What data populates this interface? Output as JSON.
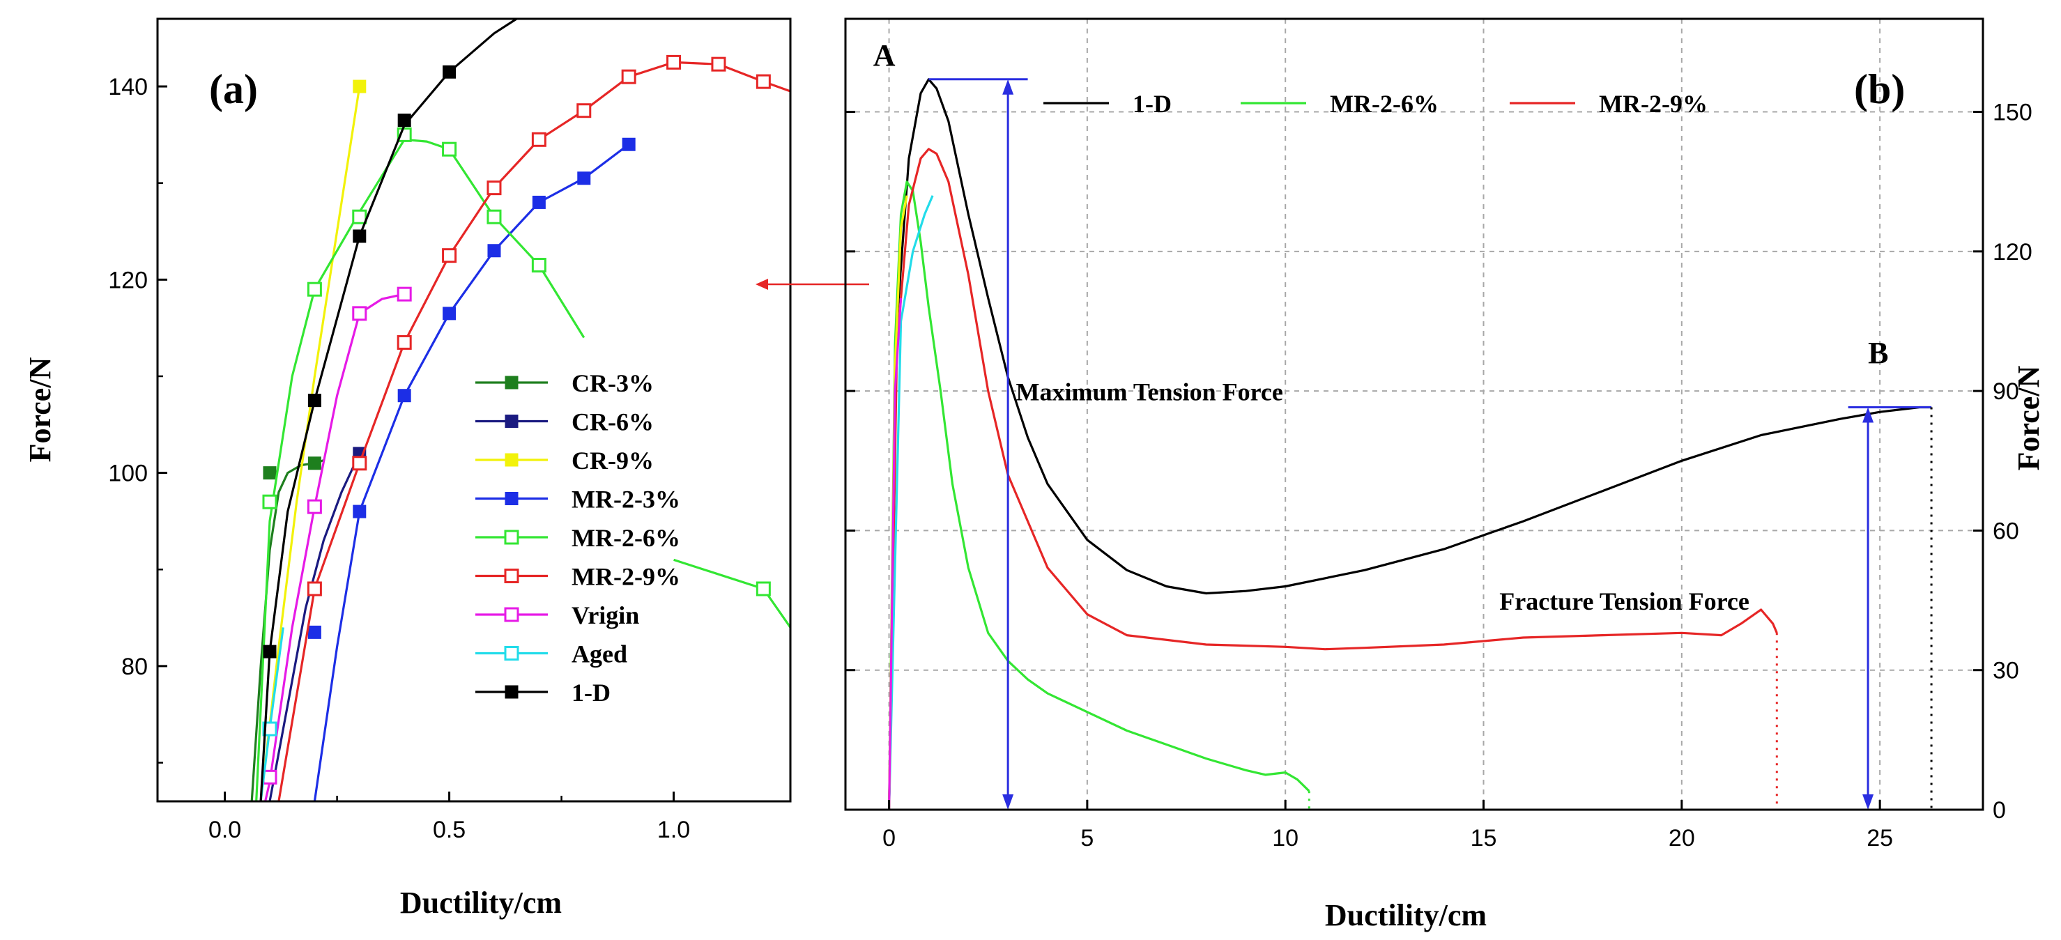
{
  "colors": {
    "cr3": "#1e7f1e",
    "cr6": "#1a1a80",
    "cr9": "#f2f20a",
    "mr3": "#1c2ee6",
    "mr6": "#33e633",
    "mr9": "#e62626",
    "vrigin": "#e61ae6",
    "aged": "#22dcea",
    "oned": "#000000",
    "arrow_blue": "#2a2ee0",
    "grid": "#a8a8a8"
  },
  "chart_data": [
    {
      "panel": "(a)",
      "type": "line",
      "xlabel": "Ductility/cm",
      "ylabel": "Force/N",
      "xlim": [
        -0.15,
        1.26
      ],
      "ylim": [
        66,
        147
      ],
      "xticks": [
        0.0,
        0.5,
        1.0
      ],
      "xtick_labels": [
        "0.0",
        "0.5",
        "1.0"
      ],
      "yticks": [
        80,
        100,
        120,
        140
      ],
      "ytick_labels": [
        "80",
        "100",
        "120",
        "140"
      ],
      "series": [
        {
          "name": "CR-3%",
          "key": "cr3",
          "marker": "filled",
          "x": [
            0.06,
            0.08,
            0.1,
            0.12,
            0.14,
            0.17,
            0.2,
            0.22
          ],
          "y": [
            66,
            80,
            92,
            98,
            100,
            100.8,
            101,
            101.3
          ],
          "mx": [
            0.1,
            0.2
          ],
          "my": [
            100,
            101
          ]
        },
        {
          "name": "CR-6%",
          "key": "cr6",
          "marker": "filled",
          "x": [
            0.1,
            0.14,
            0.18,
            0.22,
            0.26,
            0.3
          ],
          "y": [
            66,
            76,
            86,
            93,
            98,
            102
          ],
          "mx": [
            0.3
          ],
          "my": [
            102
          ]
        },
        {
          "name": "CR-9%",
          "key": "cr9",
          "marker": "filled",
          "x": [
            0.08,
            0.12,
            0.16,
            0.2,
            0.24,
            0.27,
            0.3
          ],
          "y": [
            66,
            82,
            97,
            110,
            122,
            131,
            140
          ],
          "mx": [
            0.3
          ],
          "my": [
            140
          ]
        },
        {
          "name": "MR-2-3%",
          "key": "mr3",
          "marker": "filled",
          "x": [
            0.2,
            0.25,
            0.3,
            0.4,
            0.5,
            0.6,
            0.7,
            0.8,
            0.9
          ],
          "y": [
            66,
            82,
            96,
            108,
            116.5,
            123,
            128,
            130.5,
            134
          ],
          "mx": [
            0.2,
            0.3,
            0.4,
            0.5,
            0.6,
            0.7,
            0.8,
            0.9
          ],
          "my": [
            83.5,
            96,
            108,
            116.5,
            123,
            128,
            130.5,
            134
          ]
        },
        {
          "name": "MR-2-6%",
          "key": "mr6",
          "marker": "open",
          "x": [
            0.07,
            0.1,
            0.15,
            0.2,
            0.3,
            0.4,
            0.45,
            0.5,
            0.6,
            0.7,
            0.8
          ],
          "y": [
            66,
            95,
            110,
            119,
            127,
            134.5,
            134.3,
            133.5,
            126.5,
            121.5,
            114
          ],
          "mx": [
            0.1,
            0.2,
            0.3,
            0.4,
            0.5,
            0.6,
            0.7
          ],
          "my": [
            97,
            119,
            126.5,
            135,
            133.5,
            126.5,
            121.5
          ]
        },
        {
          "name": "MR-2-9%",
          "key": "mr9",
          "marker": "open",
          "x": [
            0.12,
            0.2,
            0.3,
            0.4,
            0.5,
            0.6,
            0.7,
            0.8,
            0.9,
            1.0,
            1.1,
            1.2,
            1.26
          ],
          "y": [
            66,
            88,
            101,
            113.5,
            122.5,
            129.5,
            134.5,
            137.5,
            141,
            142.5,
            142.3,
            140.5,
            139.5
          ],
          "mx": [
            0.2,
            0.3,
            0.4,
            0.5,
            0.6,
            0.7,
            0.8,
            0.9,
            1.0,
            1.1,
            1.2
          ],
          "my": [
            88,
            101,
            113.5,
            122.5,
            129.5,
            134.5,
            137.5,
            141,
            142.5,
            142.3,
            140.5
          ]
        },
        {
          "name": "Vrigin",
          "key": "vrigin",
          "marker": "open",
          "x": [
            0.09,
            0.1,
            0.15,
            0.2,
            0.25,
            0.3,
            0.35,
            0.4
          ],
          "y": [
            66,
            68,
            84,
            96.5,
            108,
            116.5,
            118,
            118.5
          ],
          "mx": [
            0.1,
            0.2,
            0.3,
            0.4
          ],
          "my": [
            68.5,
            96.5,
            116.5,
            118.5
          ]
        },
        {
          "name": "Aged",
          "key": "aged",
          "marker": "open",
          "x": [
            0.08,
            0.1,
            0.13
          ],
          "y": [
            66,
            73.5,
            84
          ],
          "mx": [
            0.1
          ],
          "my": [
            73.5
          ]
        },
        {
          "name": "1-D",
          "key": "oned",
          "marker": "filled",
          "x": [
            0.08,
            0.1,
            0.14,
            0.2,
            0.3,
            0.4,
            0.5,
            0.6,
            0.65
          ],
          "y": [
            66,
            81.5,
            96,
            107.5,
            124.5,
            136,
            141.5,
            145.5,
            147
          ],
          "mx": [
            0.1,
            0.2,
            0.3,
            0.4,
            0.5
          ],
          "my": [
            81.5,
            107.5,
            124.5,
            136.5,
            141.5
          ]
        },
        {
          "name": "MR-2-6% tail",
          "key": "mr6",
          "marker": "open",
          "legend": false,
          "x": [
            1.0,
            1.1,
            1.2,
            1.26
          ],
          "y": [
            91,
            89.5,
            88,
            84
          ],
          "mx": [
            1.2
          ],
          "my": [
            88
          ]
        }
      ],
      "legend_location": "lower-right"
    },
    {
      "panel": "(b)",
      "type": "line",
      "xlabel": "Ductility/cm",
      "ylabel": "Force/N",
      "xlim": [
        -1.1,
        27.6
      ],
      "ylim": [
        0,
        170
      ],
      "xticks": [
        0,
        5,
        10,
        15,
        20,
        25
      ],
      "xtick_labels": [
        "0",
        "5",
        "10",
        "15",
        "20",
        "25"
      ],
      "yticks": [
        0,
        30,
        60,
        90,
        120,
        150
      ],
      "ytick_labels": [
        "0",
        "30",
        "60",
        "90",
        "120",
        "150"
      ],
      "grid": true,
      "series": [
        {
          "name": "1-D",
          "key": "oned",
          "x": [
            0,
            0.2,
            0.5,
            0.8,
            1.0,
            1.2,
            1.5,
            2.0,
            2.5,
            3.0,
            3.5,
            4.0,
            5.0,
            6.0,
            7.0,
            8.0,
            9.0,
            10.0,
            12.0,
            14.0,
            16.0,
            18.0,
            20.0,
            22.0,
            24.0,
            25.0,
            26.0,
            26.3
          ],
          "y": [
            0,
            105,
            140,
            154,
            157,
            155,
            148,
            128,
            110,
            93,
            80,
            70,
            58,
            51.5,
            48,
            46.5,
            47,
            48,
            51.5,
            56,
            62,
            68.5,
            75,
            80.5,
            84,
            85.5,
            86.5,
            86.5
          ]
        },
        {
          "name": "MR-2-6%",
          "key": "mr6",
          "x": [
            0,
            0.15,
            0.3,
            0.45,
            0.6,
            0.8,
            1.0,
            1.3,
            1.6,
            2.0,
            2.5,
            3.0,
            3.5,
            4.0,
            5.0,
            6.0,
            7.0,
            8.0,
            9.0,
            9.5,
            10.0,
            10.3,
            10.6
          ],
          "y": [
            0,
            100,
            128,
            135,
            133,
            122,
            108,
            90,
            70,
            52,
            38,
            32,
            28,
            25,
            21,
            17,
            14,
            11,
            8.5,
            7.5,
            8,
            6.5,
            4
          ]
        },
        {
          "name": "MR-2-9%",
          "key": "mr9",
          "x": [
            0,
            0.2,
            0.5,
            0.8,
            1.0,
            1.2,
            1.5,
            2.0,
            2.5,
            3.0,
            4.0,
            5.0,
            6.0,
            8.0,
            10.0,
            11.0,
            12.0,
            14.0,
            16.0,
            18.0,
            20.0,
            21.0,
            21.5,
            22.0,
            22.3,
            22.4
          ],
          "y": [
            0,
            100,
            130,
            140,
            142,
            141,
            135,
            115,
            90,
            72,
            52,
            42,
            37.5,
            35.5,
            35,
            34.5,
            34.8,
            35.5,
            37,
            37.5,
            38,
            37.5,
            40,
            43,
            40,
            38
          ]
        },
        {
          "name": "Aged",
          "key": "aged",
          "legend": false,
          "x": [
            0,
            0.3,
            0.6,
            0.9,
            1.1
          ],
          "y": [
            0,
            105,
            120,
            128,
            132
          ]
        },
        {
          "name": "CR-9%",
          "key": "cr9",
          "legend": false,
          "x": [
            0,
            0.15,
            0.3,
            0.45
          ],
          "y": [
            0,
            95,
            125,
            132
          ]
        },
        {
          "name": "Vrigin",
          "key": "vrigin",
          "legend": false,
          "x": [
            0,
            0.15,
            0.3
          ],
          "y": [
            0,
            90,
            110
          ]
        }
      ],
      "annotations": [
        {
          "text": "Maximum Tension Force",
          "x": 3.2,
          "y": 88
        },
        {
          "text": "Fracture Tension Force",
          "x": 15.4,
          "y": 43
        },
        {
          "text": "A",
          "x": -0.4,
          "y": 160
        },
        {
          "text": "B",
          "x": 24.7,
          "y": 96
        }
      ],
      "markers": {
        "max_force_line": {
          "x": 3.0,
          "y_top": 157,
          "y_bottom": 0,
          "cap_x": [
            1.0,
            3.5
          ]
        },
        "fracture_line": {
          "x": 24.7,
          "y_top": 86.5,
          "y_bottom": 0,
          "cap_x": [
            24.2,
            26.3
          ]
        },
        "drop_lines": [
          {
            "x": 22.4,
            "y_top": 38,
            "key": "mr9"
          },
          {
            "x": 26.3,
            "y_top": 86.5,
            "key": "oned"
          },
          {
            "x": 10.6,
            "y_top": 4,
            "key": "mr6"
          }
        ]
      },
      "legend_location": "top"
    }
  ]
}
